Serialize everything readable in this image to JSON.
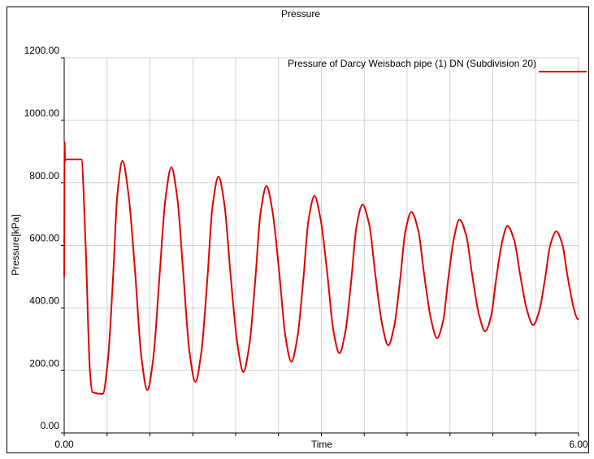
{
  "chart_data": {
    "type": "line",
    "title": "Pressure",
    "x_label": "Time",
    "y_label": "Pressure[kPa]",
    "xlim": [
      0,
      6
    ],
    "ylim": [
      0,
      1200
    ],
    "xticks": [
      {
        "value": 0,
        "label": "0.00"
      },
      {
        "value": 6,
        "label": "6.00"
      }
    ],
    "xminor": [
      0.5,
      1,
      1.5,
      2,
      2.5,
      3,
      3.5,
      4,
      4.5,
      5,
      5.5
    ],
    "yticks": [
      {
        "value": 0,
        "label": "0.00"
      },
      {
        "value": 200,
        "label": "200.00"
      },
      {
        "value": 400,
        "label": "400.00"
      },
      {
        "value": 600,
        "label": "600.00"
      },
      {
        "value": 800,
        "label": "800.00"
      },
      {
        "value": 1000,
        "label": "1000.00"
      },
      {
        "value": 1200,
        "label": "1200.00"
      }
    ],
    "grid": true,
    "legend": "upper right",
    "x": [
      0,
      0.005,
      0.01,
      0.02,
      0.2,
      0.25,
      0.3,
      0.33,
      0.45,
      0.51,
      0.57,
      0.62,
      0.68,
      0.75,
      0.83,
      0.9,
      0.97,
      1.04,
      1.11,
      1.18,
      1.25,
      1.32,
      1.39,
      1.46,
      1.53,
      1.6,
      1.67,
      1.73,
      1.8,
      1.87,
      1.94,
      2.02,
      2.09,
      2.16,
      2.23,
      2.29,
      2.36,
      2.43,
      2.51,
      2.58,
      2.65,
      2.72,
      2.79,
      2.85,
      2.92,
      2.99,
      3.07,
      3.14,
      3.21,
      3.28,
      3.35,
      3.41,
      3.48,
      3.56,
      3.63,
      3.71,
      3.78,
      3.85,
      3.92,
      3.98,
      4.05,
      4.13,
      4.2,
      4.28,
      4.35,
      4.42,
      4.48,
      4.55,
      4.61,
      4.69,
      4.76,
      4.84,
      4.91,
      4.98,
      5.04,
      5.11,
      5.17,
      5.25,
      5.32,
      5.4,
      5.47,
      5.54,
      5.61,
      5.67,
      5.74,
      5.81,
      5.87,
      5.94,
      5.98,
      6.0
    ],
    "series": [
      {
        "name": "Pressure of Darcy Weisbach pipe (1) DN (Subdivision 20)",
        "color": "#e00000",
        "values": [
          500,
          930,
          870,
          875,
          875,
          600,
          200,
          130,
          125,
          234,
          498,
          761,
          870,
          763,
          504,
          244,
          137,
          241,
          494,
          746,
          850,
          750,
          507,
          263,
          163,
          259,
          492,
          724,
          820,
          729,
          508,
          286,
          195,
          282,
          493,
          703,
          790,
          708,
          509,
          310,
          228,
          305,
          493,
          681,
          758,
          685,
          507,
          328,
          255,
          324,
          493,
          661,
          730,
          664,
          505,
          346,
          280,
          342,
          494,
          645,
          707,
          648,
          505,
          362,
          303,
          358,
          493,
          628,
          683,
          631,
          504,
          377,
          325,
          374,
          494,
          613,
          662,
          616,
          504,
          391,
          345,
          389,
          495,
          601,
          645,
          604,
          504,
          403,
          368,
          362
        ]
      }
    ]
  }
}
